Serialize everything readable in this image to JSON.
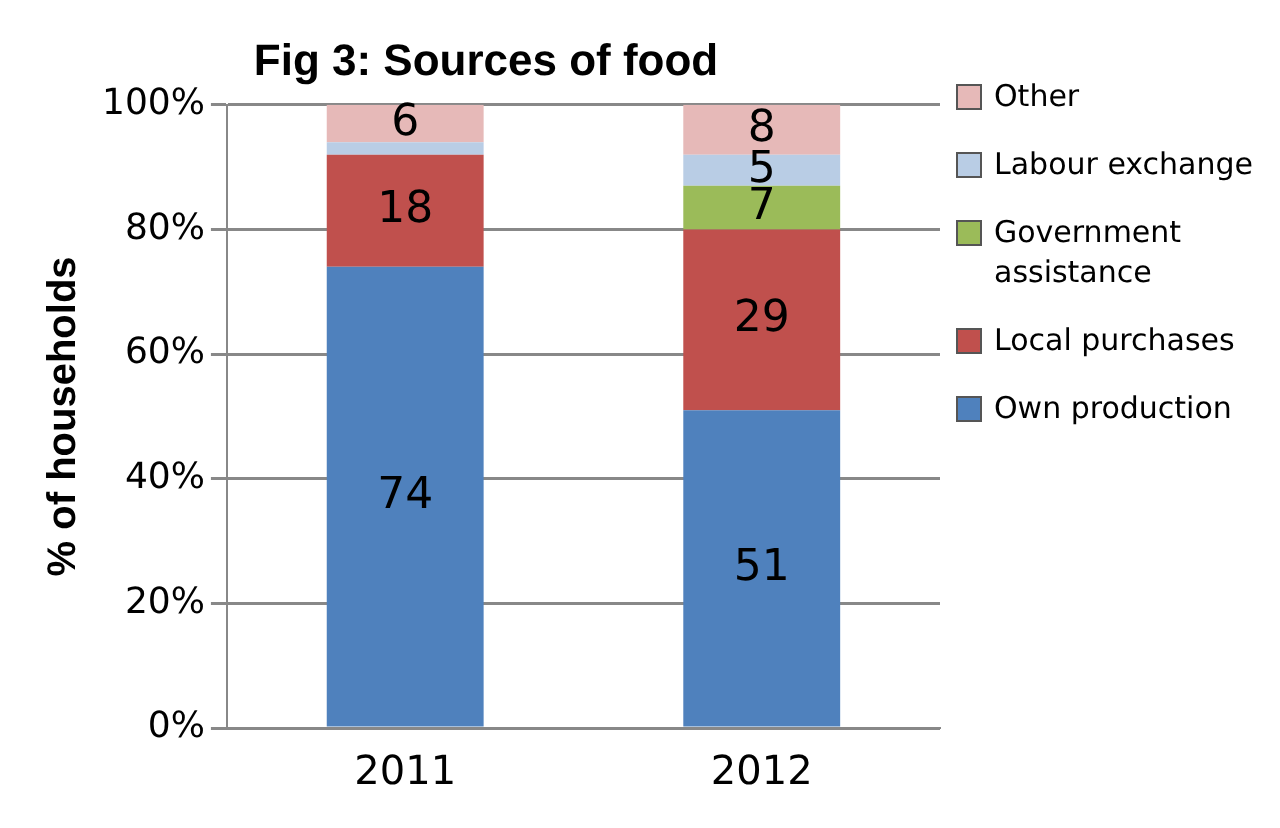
{
  "chart_data": {
    "type": "bar",
    "title": "Fig 3: Sources of food",
    "ylabel": "% of households",
    "categories": [
      "2011",
      "2012"
    ],
    "stacked": true,
    "ylim": [
      0,
      100
    ],
    "yticks": [
      {
        "value": 0,
        "label": "0%"
      },
      {
        "value": 20,
        "label": "20%"
      },
      {
        "value": 40,
        "label": "40%"
      },
      {
        "value": 60,
        "label": "60%"
      },
      {
        "value": 80,
        "label": "80%"
      },
      {
        "value": 100,
        "label": "100%"
      }
    ],
    "grid": "y",
    "legend": "right",
    "series": [
      {
        "name": "Own production",
        "color": "#4f81bd",
        "values": [
          74,
          51
        ],
        "value_labels": [
          "74",
          "51"
        ]
      },
      {
        "name": "Local purchases",
        "color": "#c0504d",
        "values": [
          18,
          29
        ],
        "value_labels": [
          "18",
          "29"
        ]
      },
      {
        "name": "Government assistance",
        "color": "#9bbb59",
        "values": [
          0,
          7
        ],
        "value_labels": [
          null,
          "7"
        ]
      },
      {
        "name": "Labour exchange",
        "color": "#b9cde5",
        "values": [
          2,
          5
        ],
        "value_labels": [
          null,
          "5"
        ]
      },
      {
        "name": "Other",
        "color": "#e6b9b8",
        "values": [
          6,
          8
        ],
        "value_labels": [
          "6",
          "8"
        ]
      }
    ]
  }
}
